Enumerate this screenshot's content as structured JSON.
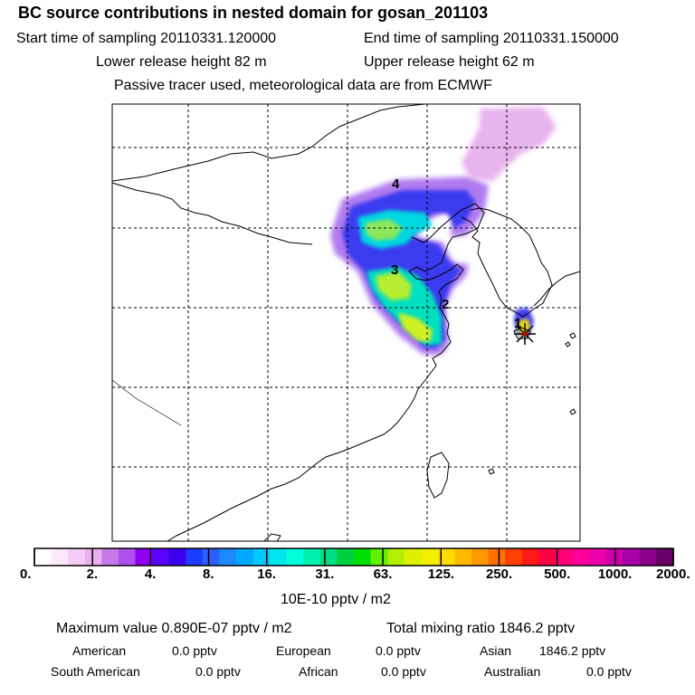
{
  "header": {
    "title": "BC  source contributions in nested domain for gosan_201103",
    "start_label": "Start time of sampling 20110331.120000",
    "end_label": "End time of sampling 20110331.150000",
    "lower_label": "Lower release height   82 m",
    "upper_label": "Upper release height   62 m",
    "note": "Passive tracer used, meteorological data are from ECMWF"
  },
  "map": {
    "markers": [
      "1",
      "2",
      "3",
      "4"
    ],
    "receptor_icon": "star-marker-icon"
  },
  "colorbar": {
    "ticks": [
      "0.",
      "2.",
      "4.",
      "8.",
      "16.",
      "31.",
      "63.",
      "125.",
      "250.",
      "500.",
      "1000.",
      "2000."
    ],
    "unit": "10E-10 pptv / m2",
    "colors": [
      "#ffffff",
      "#fbe8fb",
      "#f4ccf4",
      "#eab0ee",
      "#c47ae8",
      "#b04ff0",
      "#9000f0",
      "#5a00ff",
      "#3a00ee",
      "#1e3cff",
      "#2a60ff",
      "#1e88ff",
      "#00a8ff",
      "#00c8ff",
      "#00e6ee",
      "#00ffdd",
      "#00f0b0",
      "#00dd80",
      "#00d040",
      "#00e000",
      "#60f000",
      "#b0f000",
      "#dcf000",
      "#f0f000",
      "#ffdc00",
      "#ffbb00",
      "#ff9900",
      "#ff7000",
      "#ff4000",
      "#ff1a1a",
      "#ff0044",
      "#ff0077",
      "#ff0099",
      "#ee00aa",
      "#cc00aa",
      "#aa00aa",
      "#880088",
      "#660066"
    ]
  },
  "stats": {
    "maximum": "Maximum value  0.890E-07 pptv / m2",
    "total": "Total mixing ratio     1846.2 pptv",
    "american_label": "American",
    "american_value": "0.0 pptv",
    "european_label": "European",
    "european_value": "0.0 pptv",
    "asian_label": "Asian",
    "asian_value": "1846.2 pptv",
    "south_american_label": "South American",
    "south_american_value": "0.0 pptv",
    "african_label": "African",
    "african_value": "0.0 pptv",
    "australian_label": "Australian",
    "australian_value": "0.0 pptv"
  }
}
